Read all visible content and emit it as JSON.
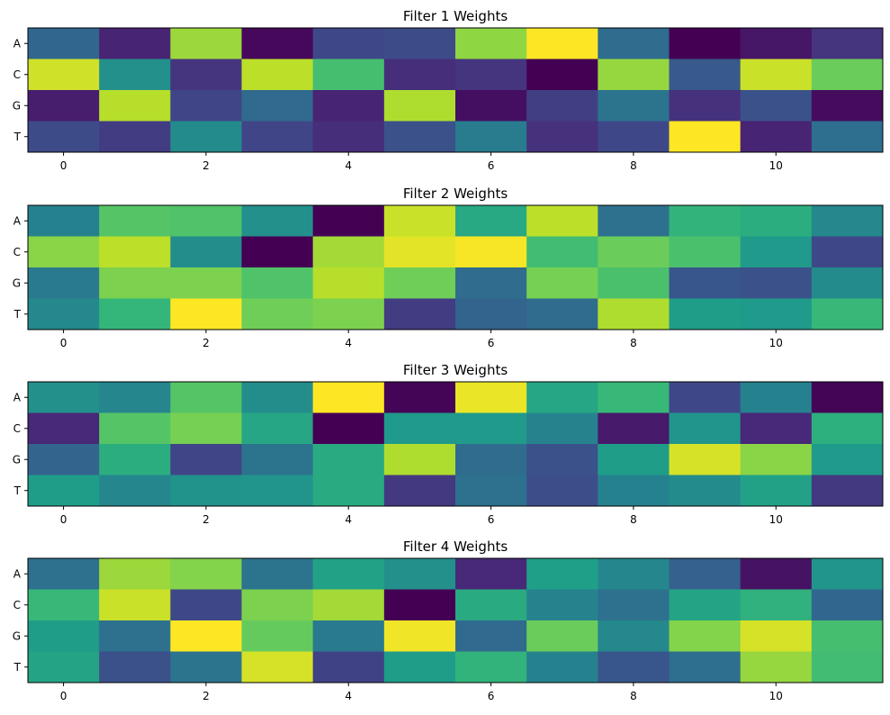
{
  "chart_data": [
    {
      "type": "heatmap",
      "title": "Filter 1 Weights",
      "rows": [
        "A",
        "C",
        "G",
        "T"
      ],
      "xticks": [
        0,
        2,
        4,
        6,
        8,
        10
      ],
      "colormap": "viridis",
      "values": [
        [
          0.33,
          0.1,
          0.85,
          0.02,
          0.22,
          0.23,
          0.83,
          1.0,
          0.35,
          0.0,
          0.06,
          0.15
        ],
        [
          0.93,
          0.5,
          0.15,
          0.9,
          0.7,
          0.13,
          0.15,
          0.0,
          0.84,
          0.28,
          0.92,
          0.77
        ],
        [
          0.08,
          0.89,
          0.21,
          0.34,
          0.1,
          0.88,
          0.04,
          0.19,
          0.38,
          0.14,
          0.25,
          0.03
        ],
        [
          0.23,
          0.18,
          0.48,
          0.21,
          0.13,
          0.25,
          0.42,
          0.14,
          0.22,
          1.0,
          0.1,
          0.36
        ]
      ]
    },
    {
      "type": "heatmap",
      "title": "Filter 2 Weights",
      "rows": [
        "A",
        "C",
        "G",
        "T"
      ],
      "xticks": [
        0,
        2,
        4,
        6,
        8,
        10
      ],
      "colormap": "viridis",
      "values": [
        [
          0.44,
          0.73,
          0.72,
          0.5,
          0.0,
          0.92,
          0.6,
          0.9,
          0.37,
          0.65,
          0.62,
          0.47
        ],
        [
          0.82,
          0.9,
          0.49,
          0.0,
          0.86,
          0.96,
          0.99,
          0.69,
          0.77,
          0.71,
          0.54,
          0.22
        ],
        [
          0.41,
          0.8,
          0.8,
          0.72,
          0.89,
          0.78,
          0.35,
          0.79,
          0.71,
          0.27,
          0.25,
          0.48
        ],
        [
          0.47,
          0.66,
          1.0,
          0.78,
          0.8,
          0.18,
          0.32,
          0.35,
          0.88,
          0.55,
          0.54,
          0.67
        ]
      ]
    },
    {
      "type": "heatmap",
      "title": "Filter 3 Weights",
      "rows": [
        "A",
        "C",
        "G",
        "T"
      ],
      "xticks": [
        0,
        2,
        4,
        6,
        8,
        10
      ],
      "colormap": "viridis",
      "values": [
        [
          0.5,
          0.46,
          0.73,
          0.49,
          1.0,
          0.01,
          0.97,
          0.59,
          0.67,
          0.22,
          0.44,
          0.01
        ],
        [
          0.11,
          0.73,
          0.79,
          0.59,
          0.0,
          0.54,
          0.54,
          0.45,
          0.07,
          0.52,
          0.11,
          0.63
        ],
        [
          0.32,
          0.62,
          0.21,
          0.38,
          0.61,
          0.88,
          0.35,
          0.25,
          0.55,
          0.94,
          0.82,
          0.54
        ],
        [
          0.55,
          0.46,
          0.51,
          0.52,
          0.61,
          0.17,
          0.37,
          0.24,
          0.44,
          0.48,
          0.57,
          0.17
        ]
      ]
    },
    {
      "type": "heatmap",
      "title": "Filter 4 Weights",
      "rows": [
        "A",
        "C",
        "G",
        "T"
      ],
      "xticks": [
        0,
        2,
        4,
        6,
        8,
        10
      ],
      "colormap": "viridis",
      "values": [
        [
          0.37,
          0.85,
          0.81,
          0.38,
          0.57,
          0.5,
          0.11,
          0.56,
          0.46,
          0.31,
          0.05,
          0.52
        ],
        [
          0.67,
          0.92,
          0.22,
          0.8,
          0.86,
          0.0,
          0.61,
          0.45,
          0.37,
          0.58,
          0.64,
          0.33
        ],
        [
          0.55,
          0.37,
          1.0,
          0.76,
          0.41,
          0.98,
          0.34,
          0.77,
          0.47,
          0.81,
          0.94,
          0.7
        ],
        [
          0.58,
          0.25,
          0.38,
          0.94,
          0.2,
          0.55,
          0.65,
          0.44,
          0.27,
          0.36,
          0.84,
          0.69
        ]
      ]
    }
  ]
}
